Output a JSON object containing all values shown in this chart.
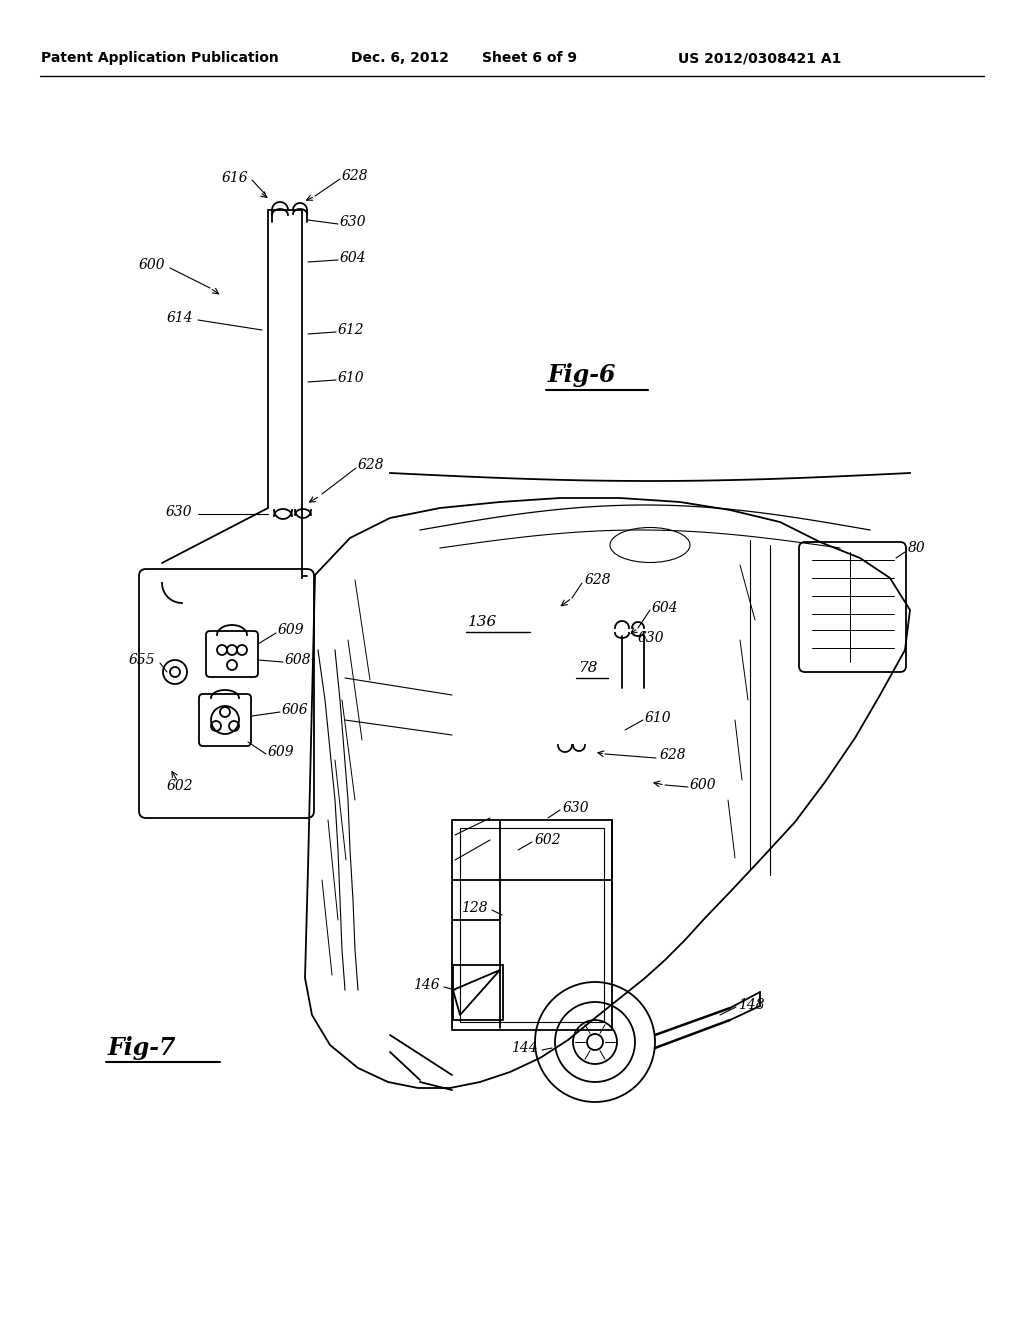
{
  "bg_color": "#ffffff",
  "header_left": "Patent Application Publication",
  "header_date": "Dec. 6, 2012",
  "header_sheet": "Sheet 6 of 9",
  "header_right": "US 2012/0308421 A1",
  "fig6_label": "Fig-6",
  "fig7_label": "Fig-7",
  "fig_width": 10.24,
  "fig_height": 13.2,
  "dpi": 100
}
